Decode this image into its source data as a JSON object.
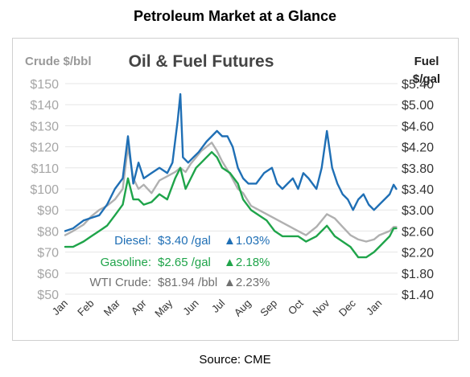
{
  "page_title": "Petroleum Market at a Glance",
  "source": "Source: CME",
  "chart_data": {
    "type": "line",
    "title": "Oil & Fuel Futures",
    "left_axis": {
      "label": "Crude $/bbl",
      "ylim": [
        50,
        150
      ],
      "ticks": [
        "$50",
        "$60",
        "$70",
        "$80",
        "$90",
        "$100",
        "$110",
        "$120",
        "$130",
        "$140",
        "$150"
      ]
    },
    "right_axis": {
      "label_line1": "Fuel",
      "label_line2": "$/gal",
      "ylim": [
        1.4,
        5.4
      ],
      "ticks": [
        "$1.40",
        "$1.80",
        "$2.20",
        "$2.60",
        "$3.00",
        "$3.40",
        "$3.80",
        "$4.20",
        "$4.60",
        "$5.00",
        "$5.40"
      ]
    },
    "x_categories": [
      "Jan",
      "Feb",
      "Mar",
      "Apr",
      "May",
      "Jun",
      "Jul",
      "Aug",
      "Sep",
      "Oct",
      "Nov",
      "Dec",
      "Jan"
    ],
    "grid": "horizontal",
    "series": [
      {
        "name": "Diesel",
        "axis": "right",
        "color": "#1f6fb5",
        "values": [
          [
            0,
            2.6
          ],
          [
            0.3,
            2.65
          ],
          [
            0.7,
            2.8
          ],
          [
            1.0,
            2.85
          ],
          [
            1.3,
            2.9
          ],
          [
            1.6,
            3.1
          ],
          [
            1.9,
            3.4
          ],
          [
            2.2,
            3.6
          ],
          [
            2.4,
            4.4
          ],
          [
            2.6,
            3.5
          ],
          [
            2.8,
            3.9
          ],
          [
            3.0,
            3.6
          ],
          [
            3.3,
            3.7
          ],
          [
            3.6,
            3.8
          ],
          [
            3.9,
            3.7
          ],
          [
            4.1,
            3.9
          ],
          [
            4.3,
            4.7
          ],
          [
            4.4,
            5.2
          ],
          [
            4.5,
            4.0
          ],
          [
            4.7,
            3.9
          ],
          [
            4.9,
            4.0
          ],
          [
            5.1,
            4.1
          ],
          [
            5.4,
            4.3
          ],
          [
            5.6,
            4.4
          ],
          [
            5.8,
            4.5
          ],
          [
            6.0,
            4.4
          ],
          [
            6.2,
            4.4
          ],
          [
            6.4,
            4.2
          ],
          [
            6.6,
            3.8
          ],
          [
            6.8,
            3.6
          ],
          [
            7.0,
            3.5
          ],
          [
            7.3,
            3.5
          ],
          [
            7.6,
            3.7
          ],
          [
            7.9,
            3.8
          ],
          [
            8.1,
            3.5
          ],
          [
            8.3,
            3.4
          ],
          [
            8.5,
            3.5
          ],
          [
            8.7,
            3.6
          ],
          [
            8.9,
            3.4
          ],
          [
            9.1,
            3.7
          ],
          [
            9.3,
            3.6
          ],
          [
            9.6,
            3.4
          ],
          [
            9.8,
            3.8
          ],
          [
            10.0,
            4.5
          ],
          [
            10.2,
            3.8
          ],
          [
            10.4,
            3.5
          ],
          [
            10.6,
            3.3
          ],
          [
            10.8,
            3.2
          ],
          [
            11.0,
            3.0
          ],
          [
            11.2,
            3.2
          ],
          [
            11.4,
            3.3
          ],
          [
            11.6,
            3.1
          ],
          [
            11.8,
            3.0
          ],
          [
            12.0,
            3.1
          ],
          [
            12.2,
            3.2
          ],
          [
            12.4,
            3.3
          ],
          [
            12.55,
            3.48
          ],
          [
            12.65,
            3.4
          ]
        ]
      },
      {
        "name": "Gasoline",
        "axis": "right",
        "color": "#1fa44a",
        "values": [
          [
            0,
            2.3
          ],
          [
            0.3,
            2.3
          ],
          [
            0.7,
            2.4
          ],
          [
            1.0,
            2.5
          ],
          [
            1.3,
            2.6
          ],
          [
            1.6,
            2.7
          ],
          [
            1.9,
            2.9
          ],
          [
            2.2,
            3.1
          ],
          [
            2.4,
            3.6
          ],
          [
            2.6,
            3.2
          ],
          [
            2.8,
            3.2
          ],
          [
            3.0,
            3.1
          ],
          [
            3.3,
            3.15
          ],
          [
            3.6,
            3.3
          ],
          [
            3.9,
            3.2
          ],
          [
            4.2,
            3.6
          ],
          [
            4.4,
            3.8
          ],
          [
            4.6,
            3.4
          ],
          [
            4.8,
            3.6
          ],
          [
            5.0,
            3.8
          ],
          [
            5.2,
            3.9
          ],
          [
            5.4,
            4.0
          ],
          [
            5.6,
            4.1
          ],
          [
            5.8,
            4.0
          ],
          [
            6.0,
            3.8
          ],
          [
            6.3,
            3.7
          ],
          [
            6.6,
            3.5
          ],
          [
            6.8,
            3.2
          ],
          [
            7.1,
            3.0
          ],
          [
            7.4,
            2.9
          ],
          [
            7.7,
            2.8
          ],
          [
            8.0,
            2.6
          ],
          [
            8.3,
            2.5
          ],
          [
            8.6,
            2.5
          ],
          [
            8.9,
            2.5
          ],
          [
            9.2,
            2.4
          ],
          [
            9.6,
            2.5
          ],
          [
            10.0,
            2.7
          ],
          [
            10.3,
            2.5
          ],
          [
            10.6,
            2.4
          ],
          [
            10.9,
            2.3
          ],
          [
            11.2,
            2.1
          ],
          [
            11.5,
            2.1
          ],
          [
            11.8,
            2.2
          ],
          [
            12.0,
            2.3
          ],
          [
            12.2,
            2.4
          ],
          [
            12.4,
            2.5
          ],
          [
            12.55,
            2.65
          ],
          [
            12.65,
            2.65
          ]
        ]
      },
      {
        "name": "WTI Crude",
        "axis": "left",
        "color": "#b0b0b0",
        "values": [
          [
            0,
            78
          ],
          [
            0.3,
            80
          ],
          [
            0.7,
            83
          ],
          [
            1.0,
            87
          ],
          [
            1.3,
            90
          ],
          [
            1.6,
            92
          ],
          [
            1.9,
            95
          ],
          [
            2.2,
            100
          ],
          [
            2.4,
            120
          ],
          [
            2.6,
            105
          ],
          [
            2.8,
            100
          ],
          [
            3.0,
            102
          ],
          [
            3.3,
            98
          ],
          [
            3.6,
            104
          ],
          [
            3.9,
            106
          ],
          [
            4.2,
            108
          ],
          [
            4.4,
            110
          ],
          [
            4.6,
            108
          ],
          [
            4.8,
            112
          ],
          [
            5.0,
            115
          ],
          [
            5.2,
            118
          ],
          [
            5.4,
            120
          ],
          [
            5.6,
            122
          ],
          [
            5.8,
            118
          ],
          [
            6.0,
            113
          ],
          [
            6.3,
            107
          ],
          [
            6.6,
            100
          ],
          [
            6.8,
            98
          ],
          [
            7.1,
            92
          ],
          [
            7.4,
            90
          ],
          [
            7.7,
            88
          ],
          [
            8.0,
            86
          ],
          [
            8.3,
            84
          ],
          [
            8.6,
            82
          ],
          [
            8.9,
            80
          ],
          [
            9.2,
            78
          ],
          [
            9.6,
            82
          ],
          [
            10.0,
            88
          ],
          [
            10.3,
            86
          ],
          [
            10.6,
            82
          ],
          [
            10.9,
            78
          ],
          [
            11.2,
            76
          ],
          [
            11.5,
            75
          ],
          [
            11.8,
            76
          ],
          [
            12.0,
            78
          ],
          [
            12.2,
            79
          ],
          [
            12.4,
            80
          ],
          [
            12.55,
            81.94
          ],
          [
            12.65,
            81.94
          ]
        ]
      }
    ],
    "annotations": [
      {
        "label": "Diesel:",
        "price": "$3.40 /gal",
        "change": "▲1.03%",
        "color": "#1f6fb5"
      },
      {
        "label": "Gasoline:",
        "price": "$2.65 /gal",
        "change": "▲2.18%",
        "color": "#1fa44a"
      },
      {
        "label": "WTI Crude:",
        "price": "$81.94 /bbl",
        "change": "▲2.23%",
        "color": "#707070"
      }
    ]
  }
}
